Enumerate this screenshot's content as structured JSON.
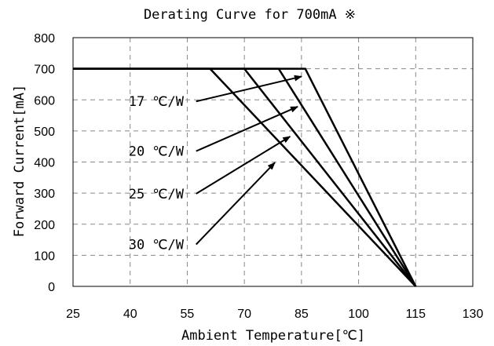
{
  "chart_data": {
    "type": "line",
    "title": "Derating Curve for 700mA ※",
    "xlabel": "Ambient Temperature[℃]",
    "ylabel": "Forward Current[mA]",
    "xlim": [
      25,
      130
    ],
    "ylim": [
      0,
      800
    ],
    "x_ticks": [
      25,
      40,
      55,
      70,
      85,
      100,
      115,
      130
    ],
    "y_ticks": [
      0,
      100,
      200,
      300,
      400,
      500,
      600,
      700,
      800
    ],
    "grid": true,
    "series": [
      {
        "name": "17 ℃/W",
        "points": [
          [
            25,
            700
          ],
          [
            86,
            700
          ],
          [
            115,
            0
          ]
        ]
      },
      {
        "name": "20 ℃/W",
        "points": [
          [
            25,
            700
          ],
          [
            79,
            700
          ],
          [
            115,
            0
          ]
        ]
      },
      {
        "name": "25 ℃/W",
        "points": [
          [
            25,
            700
          ],
          [
            70,
            700
          ],
          [
            115,
            0
          ]
        ]
      },
      {
        "name": "30 ℃/W",
        "points": [
          [
            25,
            700
          ],
          [
            61,
            700
          ],
          [
            115,
            0
          ]
        ]
      }
    ],
    "annotations": [
      {
        "text": "17 ℃/W",
        "label_at": [
          40,
          595
        ],
        "arrow_to": [
          85,
          675
        ]
      },
      {
        "text": "20 ℃/W",
        "label_at": [
          40,
          435
        ],
        "arrow_to": [
          84,
          578
        ]
      },
      {
        "text": "25 ℃/W",
        "label_at": [
          40,
          298
        ],
        "arrow_to": [
          82,
          482
        ]
      },
      {
        "text": "30 ℃/W",
        "label_at": [
          40,
          135
        ],
        "arrow_to": [
          78,
          398
        ]
      }
    ]
  }
}
